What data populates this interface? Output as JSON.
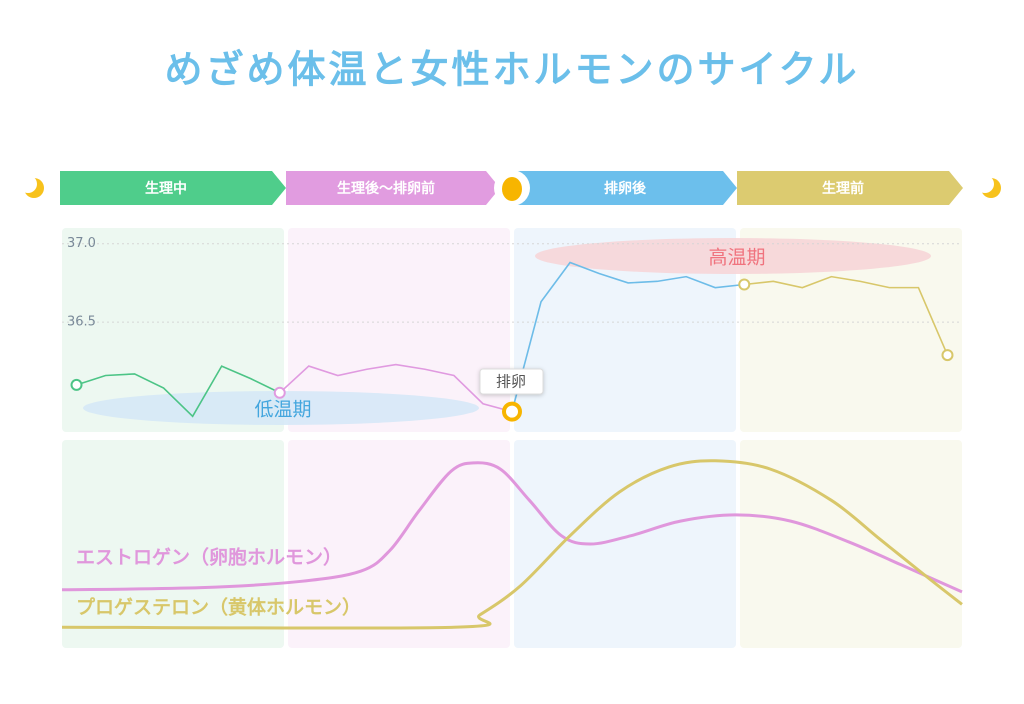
{
  "chart_data": {
    "type": "line",
    "title": "めざめ体温と女性ホルモンのサイクル",
    "phases": [
      {
        "name": "生理中",
        "color": "#4fcd8b",
        "tint": "#edf8f1",
        "line_color": "#4cc486"
      },
      {
        "name": "生理後〜排卵前",
        "color": "#e19ce0",
        "tint": "#fbf2fa",
        "line_color": "#e09ae0"
      },
      {
        "name": "排卵後",
        "color": "#6cbfec",
        "tint": "#eef5fc",
        "line_color": "#6dbce8"
      },
      {
        "name": "生理前",
        "color": "#dccb70",
        "tint": "#f9f9ee",
        "line_color": "#d8c76a"
      }
    ],
    "temperature": {
      "xlim": [
        0.5,
        31.5
      ],
      "ylim": [
        35.8,
        37.1
      ],
      "yticks": [
        36.5,
        {
          "value": 37,
          "label": "37.0"
        }
      ],
      "series": [
        {
          "x": [
            1,
            2,
            3,
            4,
            5,
            6,
            7,
            8
          ],
          "values": [
            36.1,
            36.16,
            36.17,
            36.08,
            35.9,
            36.22,
            36.14,
            36.05
          ]
        },
        {
          "x": [
            8,
            9,
            10,
            11,
            12,
            13,
            14,
            15,
            16
          ],
          "values": [
            36.05,
            36.22,
            36.16,
            36.2,
            36.23,
            36.2,
            36.16,
            35.98,
            35.93
          ]
        },
        {
          "x": [
            16,
            17,
            18,
            19,
            20,
            21,
            22,
            23,
            24
          ],
          "values": [
            35.93,
            36.63,
            36.88,
            36.81,
            36.75,
            36.76,
            36.79,
            36.72,
            36.74
          ],
          "marker_color": "#f7b500"
        },
        {
          "x": [
            24,
            25,
            26,
            27,
            28,
            29,
            30,
            31
          ],
          "values": [
            36.74,
            36.76,
            36.72,
            36.79,
            36.76,
            36.72,
            36.72,
            36.29
          ]
        }
      ],
      "annotations": {
        "high": "高温期",
        "low": "低温期",
        "ovulation": "排卵"
      }
    },
    "hormones": {
      "xlim": [
        0.5,
        31.5
      ],
      "ylim": [
        0,
        100
      ],
      "series": [
        {
          "name": "エストロゲン（卵胞ホルモン）",
          "color": "#e097dc",
          "x": [
            0.5,
            5.3,
            8.7,
            10.8,
            11.8,
            12.8,
            13.9,
            14.7,
            15.6,
            16.6,
            17.7,
            18.7,
            20.1,
            21.8,
            23.7,
            25.6,
            27.6,
            29.4,
            31.5
          ],
          "values": [
            28,
            29,
            32,
            37,
            47,
            66,
            85,
            89,
            86,
            71,
            54,
            50,
            54,
            61,
            64,
            61,
            51,
            40,
            27
          ]
        },
        {
          "name": "プロゲステロン（黄体ホルモン）",
          "color": "#d8c76a",
          "x": [
            0.5,
            14,
            14.9,
            16.3,
            18,
            19.7,
            21.4,
            23,
            24.9,
            27,
            28.7,
            30.4,
            31.5
          ],
          "values": [
            10,
            10,
            16,
            30,
            54,
            75,
            87,
            90,
            86,
            71,
            52,
            33,
            21
          ]
        }
      ]
    }
  }
}
